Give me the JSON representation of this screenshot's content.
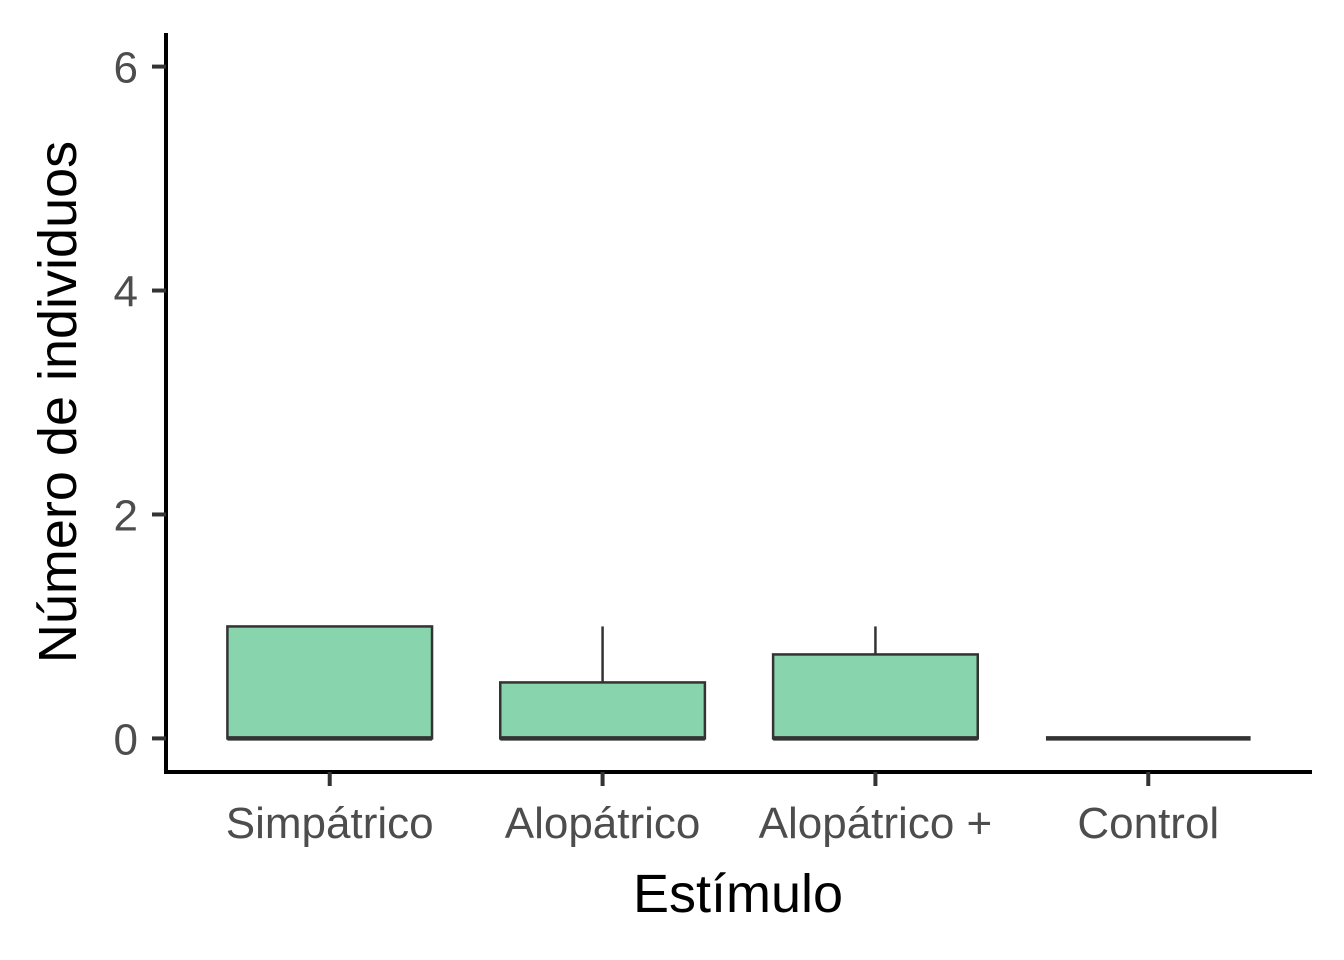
{
  "chart_data": {
    "type": "boxplot",
    "title": "",
    "xlabel": "Estímulo",
    "ylabel": "Número de individuos",
    "categories": [
      "Simpátrico",
      "Alopátrico",
      "Alopátrico +",
      "Control"
    ],
    "boxes": [
      {
        "category": "Simpátrico",
        "min": 0,
        "q1": 0,
        "median": 0,
        "q3": 1,
        "max": 1
      },
      {
        "category": "Alopátrico",
        "min": 0,
        "q1": 0,
        "median": 0,
        "q3": 0.5,
        "max": 1
      },
      {
        "category": "Alopátrico +",
        "min": 0,
        "q1": 0,
        "median": 0,
        "q3": 0.75,
        "max": 1
      },
      {
        "category": "Control",
        "min": 0,
        "q1": 0,
        "median": 0,
        "q3": 0,
        "max": 0
      }
    ],
    "ylim": [
      -0.3,
      6.3
    ],
    "yticks": [
      0,
      2,
      4,
      6
    ],
    "grid": false,
    "legend": "none",
    "fill_color": "#88d4ad",
    "line_color": "#333333"
  }
}
